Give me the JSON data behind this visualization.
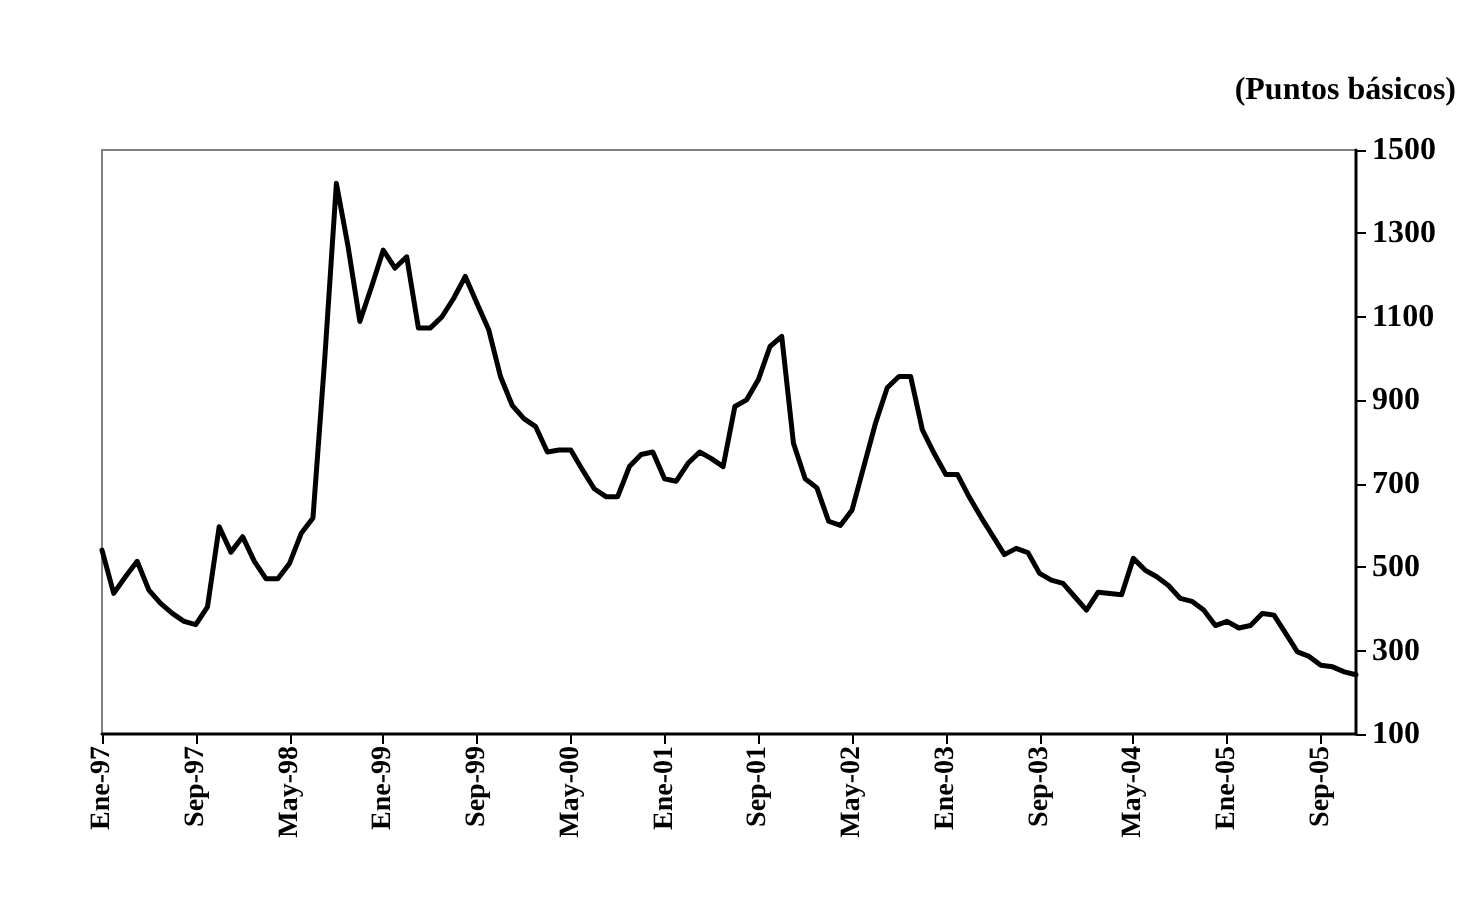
{
  "chart_data": {
    "type": "line",
    "ylabel": "(Puntos básicos)",
    "categories": [
      "Ene-97",
      null,
      null,
      null,
      null,
      null,
      null,
      null,
      "Sep-97",
      null,
      null,
      null,
      null,
      null,
      null,
      null,
      "May-98",
      null,
      null,
      null,
      null,
      null,
      null,
      null,
      "Ene-99",
      null,
      null,
      null,
      null,
      null,
      null,
      null,
      "Sep-99",
      null,
      null,
      null,
      null,
      null,
      null,
      null,
      "May-00",
      null,
      null,
      null,
      null,
      null,
      null,
      null,
      "Ene-01",
      null,
      null,
      null,
      null,
      null,
      null,
      null,
      "Sep-01",
      null,
      null,
      null,
      null,
      null,
      null,
      null,
      "May-02",
      null,
      null,
      null,
      null,
      null,
      null,
      null,
      "Ene-03",
      null,
      null,
      null,
      null,
      null,
      null,
      null,
      "Sep-03",
      null,
      null,
      null,
      null,
      null,
      null,
      null,
      "May-04",
      null,
      null,
      null,
      null,
      null,
      null,
      null,
      "Ene-05",
      null,
      null,
      null,
      null,
      null,
      null,
      null,
      "Sep-05",
      null,
      null,
      null
    ],
    "series": [
      {
        "color": "#000000",
        "values": [
          541,
          437,
          477,
          514,
          445,
          413,
          389,
          370,
          362,
          405,
          597,
          536,
          573,
          514,
          472,
          472,
          509,
          581,
          618,
          997,
          1420,
          1268,
          1089,
          1172,
          1260,
          1217,
          1244,
          1073,
          1073,
          1100,
          1144,
          1197,
          1132,
          1069,
          957,
          888,
          856,
          837,
          776,
          781,
          781,
          733,
          688,
          669,
          669,
          741,
          770,
          776,
          712,
          706,
          749,
          776,
          760,
          741,
          885,
          901,
          949,
          1029,
          1053,
          797,
          712,
          690,
          610,
          600,
          637,
          741,
          845,
          930,
          957,
          957,
          829,
          773,
          722,
          722,
          668,
          620,
          575,
          530,
          545,
          535,
          485,
          469,
          461,
          429,
          397,
          440,
          437,
          434,
          521,
          493,
          477,
          456,
          425,
          418,
          397,
          360,
          370,
          354,
          360,
          389,
          385,
          341,
          297,
          286,
          265,
          261,
          249,
          242
        ]
      }
    ],
    "ylim": [
      100,
      1500
    ],
    "yticks": [
      100,
      300,
      500,
      700,
      900,
      1100,
      1300,
      1500
    ],
    "grid": false,
    "marker": "none",
    "line_style": "solid"
  }
}
